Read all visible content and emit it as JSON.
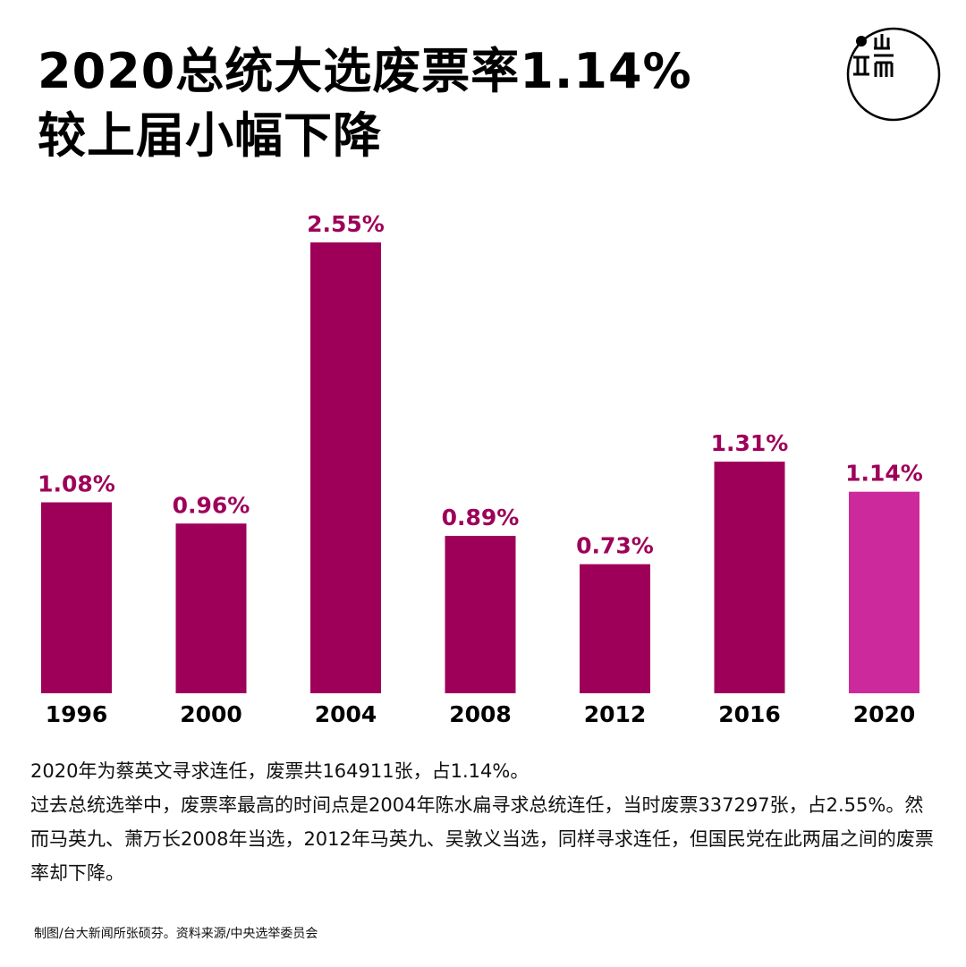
{
  "title_lines": [
    "2020总统大选废票率1.14%",
    "较上届小幅下降"
  ],
  "logo_icon": "initium-media-logo-icon",
  "chart_data": {
    "type": "bar",
    "categories": [
      "1996",
      "2000",
      "2004",
      "2008",
      "2012",
      "2016",
      "2020"
    ],
    "values": [
      1.08,
      0.96,
      2.55,
      0.89,
      0.73,
      1.31,
      1.14
    ],
    "value_labels": [
      "1.08%",
      "0.96%",
      "2.55%",
      "0.89%",
      "0.73%",
      "1.31%",
      "1.14%"
    ],
    "ylim": [
      0,
      2.55
    ],
    "grid": false,
    "legend": "none",
    "colors": {
      "bar": "#9e0059",
      "highlight_bar": "#cc2a9c",
      "value_label": "#9e0059",
      "category_label": "#000000"
    },
    "highlight_category": "2020"
  },
  "caption": {
    "line1": "2020年为蔡英文寻求连任，废票共164911张，占1.14%。",
    "line2": "过去总统选举中，废票率最高的时间点是2004年陈水扁寻求总统连任，当时废票337297张，占2.55%。然而马英九、萧万长2008年当选，2012年马英九、吴敦义当选，同样寻求连任，但国民党在此两届之间的废票率却下降。"
  },
  "credit": "制图/台大新闻所张硕芬。资料来源/中央选举委员会"
}
